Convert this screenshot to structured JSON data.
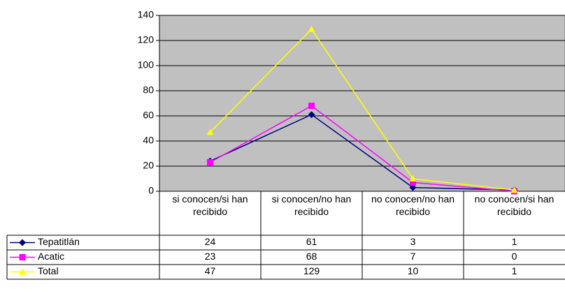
{
  "chart_data": {
    "type": "line",
    "categories": [
      "si conocen/si han recibido",
      "si conocen/no han recibido",
      "no conocen/no han recibido",
      "no conocen/si han recibido"
    ],
    "series": [
      {
        "name": "Tepatitlán",
        "color": "#000080",
        "marker": "diamond",
        "values": [
          24,
          61,
          3,
          1
        ]
      },
      {
        "name": "Acatic",
        "color": "#ff00ff",
        "marker": "square",
        "values": [
          23,
          68,
          7,
          0
        ]
      },
      {
        "name": "Total",
        "color": "#ffff00",
        "marker": "triangle",
        "values": [
          47,
          129,
          10,
          1
        ]
      }
    ],
    "ylim": [
      0,
      140
    ],
    "yticks": [
      0,
      20,
      40,
      60,
      80,
      100,
      120,
      140
    ],
    "grid": true,
    "plot_background": "#c0c0c0",
    "data_table": true
  }
}
